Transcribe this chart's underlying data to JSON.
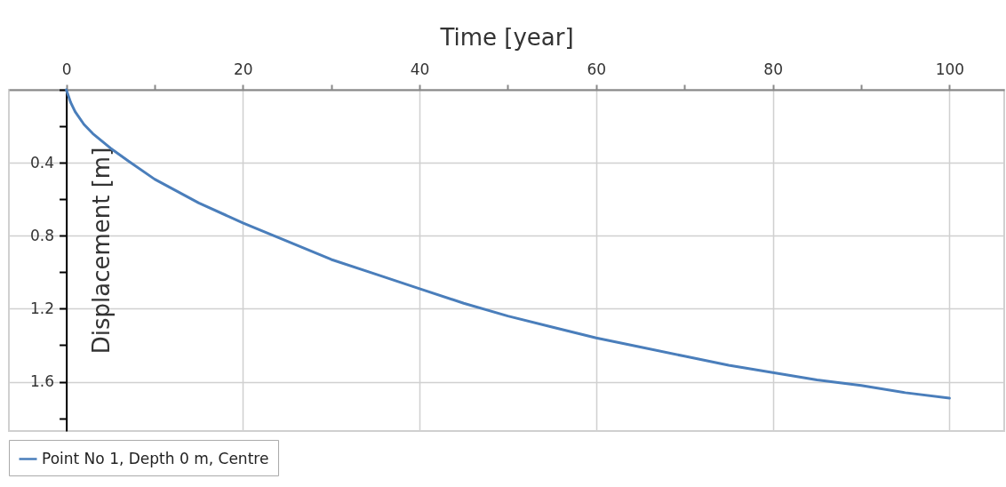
{
  "chart_data": {
    "type": "line",
    "xlabel": "Time [year]",
    "ylabel": "Displacement [m]",
    "xlim": [
      -6.5,
      106.2
    ],
    "ylim": [
      1.87,
      0
    ],
    "xticks": [
      0,
      {
        "value": 10,
        "label": null
      },
      20,
      {
        "value": 30,
        "label": null
      },
      40,
      {
        "value": 50,
        "label": null
      },
      60,
      {
        "value": 70,
        "label": null
      },
      80,
      {
        "value": 90,
        "label": null
      },
      100
    ],
    "yticks": [
      {
        "value": 0,
        "label": null
      },
      {
        "value": 0.2,
        "label": null
      },
      0.4,
      {
        "value": 0.6,
        "label": null
      },
      0.8,
      {
        "value": 1,
        "label": null
      },
      1.2,
      {
        "value": 1.4,
        "label": null
      },
      1.6,
      {
        "value": 1.8,
        "label": null
      }
    ],
    "grid": true,
    "legend": "bottom left",
    "marker": "none",
    "line_style": "solid",
    "x": [
      0,
      0.5,
      1,
      2,
      3,
      5,
      7,
      10,
      15,
      20,
      25,
      30,
      35,
      40,
      45,
      50,
      55,
      60,
      65,
      70,
      75,
      80,
      85,
      90,
      95,
      100
    ],
    "series": [
      {
        "name": "Point No 1, Depth 0 m, Centre",
        "color": "#4a7ebb",
        "values": [
          0,
          0.07,
          0.12,
          0.19,
          0.24,
          0.32,
          0.39,
          0.49,
          0.62,
          0.73,
          0.83,
          0.93,
          1.01,
          1.09,
          1.17,
          1.24,
          1.3,
          1.36,
          1.41,
          1.46,
          1.51,
          1.55,
          1.59,
          1.62,
          1.66,
          1.69
        ]
      }
    ]
  }
}
